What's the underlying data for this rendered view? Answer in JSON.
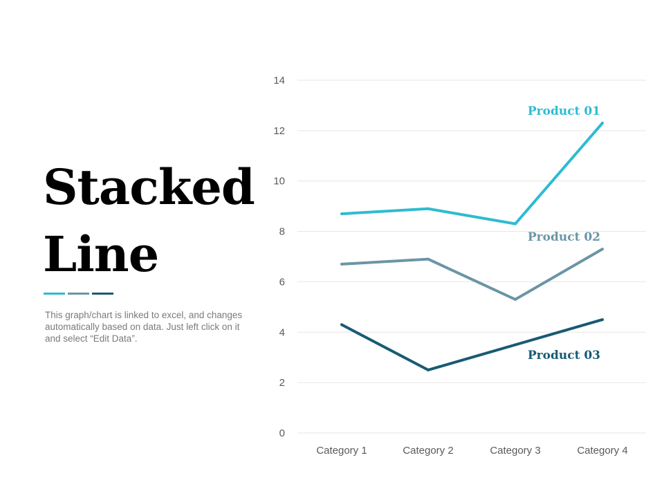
{
  "slide": {
    "title_line1": "Stacked",
    "title_line2": "Line",
    "description": "This graph/chart is linked to excel, and changes automatically based on data. Just left click on it and select “Edit Data”.",
    "accent_colors": [
      "#2ebbd1",
      "#6a95a6",
      "#185a73"
    ]
  },
  "chart_data": {
    "type": "line",
    "categories": [
      "Category 1",
      "Category 2",
      "Category 3",
      "Category 4"
    ],
    "ylim": [
      0,
      14
    ],
    "yticks": [
      0,
      2,
      4,
      6,
      8,
      10,
      12,
      14
    ],
    "grid": true,
    "series": [
      {
        "name": "Product 01",
        "color": "#2ebbd1",
        "values": [
          8.7,
          8.9,
          8.3,
          12.3
        ]
      },
      {
        "name": "Product 02",
        "color": "#6a95a6",
        "values": [
          6.7,
          6.9,
          5.3,
          7.3
        ]
      },
      {
        "name": "Product 03",
        "color": "#185a73",
        "values": [
          4.3,
          2.5,
          3.5,
          4.5
        ]
      }
    ]
  }
}
